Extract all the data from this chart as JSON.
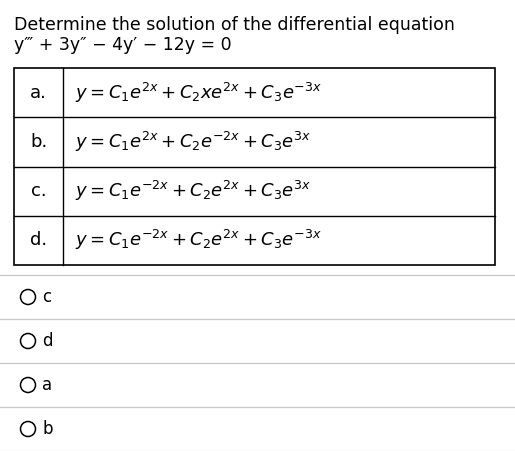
{
  "title_line1": "Determine the solution of the differential equation",
  "title_line2": "y‴ + 3y″ − 4y′ − 12y = 0",
  "options": [
    {
      "label": "a.",
      "formula": "$y = C_1e^{2x} + C_2xe^{2x} + C_3e^{-3x}$"
    },
    {
      "label": "b.",
      "formula": "$y = C_1e^{2x} + C_2e^{-2x} + C_3e^{3x}$"
    },
    {
      "label": "c.",
      "formula": "$y = C_1e^{-2x} + C_2e^{2x} + C_3e^{3x}$"
    },
    {
      "label": "d.",
      "formula": "$y = C_1e^{-2x} + C_2e^{2x} + C_3e^{-3x}$"
    }
  ],
  "radio_options": [
    "c",
    "d",
    "a",
    "b"
  ],
  "bg_color": "#ffffff",
  "text_color": "#000000",
  "table_border_color": "#000000",
  "radio_line_color": "#c8c8c8",
  "title_fontsize": 12.5,
  "formula_fontsize": 13.0,
  "label_fontsize": 13.0,
  "radio_fontsize": 12.0
}
